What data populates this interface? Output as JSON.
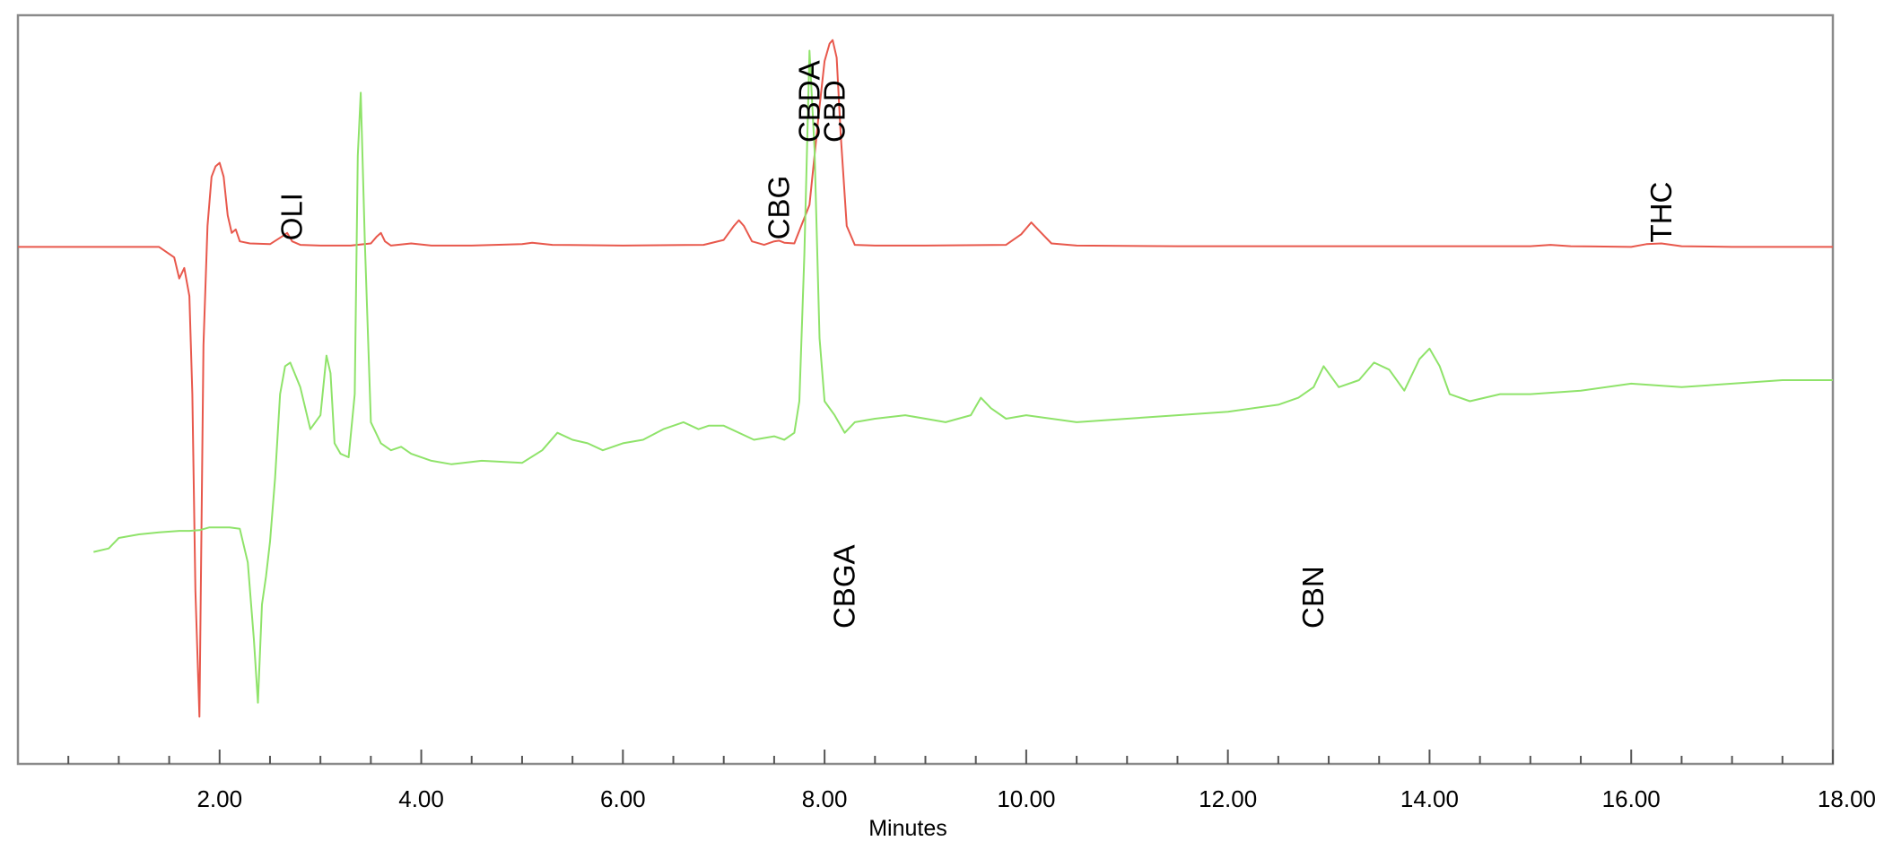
{
  "chart_data": {
    "type": "line",
    "xlabel": "Minutes",
    "ylabel": "",
    "xlim": [
      0,
      18
    ],
    "ylim": [
      0,
      100
    ],
    "grid": false,
    "y_axis_shown": false,
    "x_ticks": [
      {
        "value": 2,
        "label": "2.00"
      },
      {
        "value": 4,
        "label": "4.00"
      },
      {
        "value": 6,
        "label": "6.00"
      },
      {
        "value": 8,
        "label": "8.00"
      },
      {
        "value": 10,
        "label": "10.00"
      },
      {
        "value": 12,
        "label": "12.00"
      },
      {
        "value": 14,
        "label": "14.00"
      },
      {
        "value": 16,
        "label": "16.00"
      },
      {
        "value": 18,
        "label": "18.00"
      }
    ],
    "minor_tick_step": 0.5,
    "series": [
      {
        "color": "#e8584c",
        "x": [
          0.0,
          1.4,
          1.55,
          1.6,
          1.65,
          1.7,
          1.73,
          1.76,
          1.8,
          1.84,
          1.88,
          1.92,
          1.96,
          2.0,
          2.04,
          2.08,
          2.12,
          2.16,
          2.2,
          2.3,
          2.5,
          2.62,
          2.67,
          2.72,
          2.8,
          3.0,
          3.3,
          3.5,
          3.56,
          3.6,
          3.64,
          3.7,
          3.9,
          4.1,
          4.5,
          5.0,
          5.1,
          5.3,
          6.0,
          6.8,
          7.0,
          7.1,
          7.15,
          7.2,
          7.28,
          7.4,
          7.5,
          7.55,
          7.6,
          7.7,
          7.85,
          7.95,
          8.0,
          8.05,
          8.08,
          8.12,
          8.16,
          8.22,
          8.3,
          8.5,
          9.0,
          9.8,
          9.95,
          10.05,
          10.15,
          10.25,
          10.5,
          11.5,
          13.0,
          15.0,
          15.2,
          15.4,
          16.0,
          16.15,
          16.3,
          16.5,
          17.0,
          18.0
        ],
        "y": [
          69.0,
          69.0,
          67.5,
          64.5,
          66.0,
          62.0,
          48.0,
          20.0,
          2.0,
          55.0,
          72.0,
          79.0,
          80.5,
          81.0,
          79.0,
          73.5,
          71.0,
          71.5,
          69.8,
          69.5,
          69.4,
          70.5,
          71.0,
          69.8,
          69.3,
          69.2,
          69.2,
          69.5,
          70.5,
          71.0,
          69.8,
          69.2,
          69.5,
          69.2,
          69.2,
          69.4,
          69.6,
          69.3,
          69.2,
          69.3,
          70.0,
          72.0,
          72.8,
          72.0,
          69.8,
          69.3,
          69.8,
          69.9,
          69.6,
          69.5,
          75.0,
          89.0,
          95.5,
          98.0,
          98.5,
          96.0,
          85.0,
          72.0,
          69.3,
          69.2,
          69.2,
          69.3,
          70.8,
          72.5,
          71.0,
          69.5,
          69.2,
          69.1,
          69.1,
          69.1,
          69.3,
          69.1,
          69.0,
          69.4,
          69.5,
          69.1,
          69.0,
          69.0
        ]
      },
      {
        "color": "#8fe36a",
        "x": [
          0.75,
          0.9,
          1.0,
          1.2,
          1.4,
          1.6,
          1.7,
          1.8,
          1.9,
          2.0,
          2.1,
          2.2,
          2.28,
          2.34,
          2.38,
          2.42,
          2.46,
          2.5,
          2.55,
          2.6,
          2.65,
          2.7,
          2.8,
          2.9,
          3.0,
          3.06,
          3.1,
          3.14,
          3.2,
          3.28,
          3.34,
          3.37,
          3.4,
          3.44,
          3.5,
          3.6,
          3.7,
          3.8,
          3.9,
          4.1,
          4.3,
          4.6,
          5.0,
          5.2,
          5.35,
          5.5,
          5.65,
          5.8,
          6.0,
          6.2,
          6.4,
          6.6,
          6.75,
          6.85,
          7.0,
          7.3,
          7.5,
          7.6,
          7.7,
          7.75,
          7.8,
          7.85,
          7.9,
          7.95,
          8.0,
          8.1,
          8.2,
          8.3,
          8.5,
          8.8,
          9.2,
          9.45,
          9.55,
          9.65,
          9.8,
          10.0,
          10.5,
          11.0,
          11.5,
          12.0,
          12.5,
          12.7,
          12.85,
          12.95,
          13.1,
          13.3,
          13.45,
          13.6,
          13.75,
          13.9,
          14.0,
          14.1,
          14.2,
          14.4,
          14.7,
          15.0,
          15.5,
          16.0,
          16.5,
          17.0,
          17.5,
          18.0
        ],
        "y": [
          25.5,
          26.0,
          27.5,
          28.0,
          28.3,
          28.5,
          28.5,
          28.6,
          29.0,
          29.0,
          29.0,
          28.8,
          24.0,
          13.0,
          4.0,
          18.0,
          22.0,
          27.0,
          36.0,
          48.0,
          52.0,
          52.5,
          49.0,
          43.0,
          45.0,
          53.5,
          51.0,
          41.0,
          39.5,
          39.0,
          48.0,
          82.0,
          91.0,
          70.0,
          44.0,
          41.0,
          40.0,
          40.5,
          39.5,
          38.5,
          38.0,
          38.5,
          38.2,
          40.0,
          42.5,
          41.5,
          41.0,
          40.0,
          41.0,
          41.5,
          43.0,
          44.0,
          43.0,
          43.5,
          43.5,
          41.5,
          42.0,
          41.5,
          42.5,
          47.0,
          68.0,
          97.0,
          83.0,
          56.0,
          47.0,
          45.0,
          42.5,
          44.0,
          44.5,
          45.0,
          44.0,
          45.0,
          47.5,
          46.0,
          44.5,
          45.0,
          44.0,
          44.5,
          45.0,
          45.5,
          46.5,
          47.5,
          49.0,
          52.0,
          49.0,
          50.0,
          52.5,
          51.5,
          48.5,
          53.0,
          54.5,
          52.0,
          48.0,
          47.0,
          48.0,
          48.0,
          48.5,
          49.5,
          49.0,
          49.5,
          50.0,
          50.0
        ]
      }
    ],
    "annotations": [
      {
        "text": "OLI",
        "x": 2.72,
        "series": 0
      },
      {
        "text": "CBG",
        "x": 7.55,
        "series": 0
      },
      {
        "text": "CBDA",
        "x": 7.85,
        "series": 0
      },
      {
        "text": "CBD",
        "x": 8.1,
        "series": 0
      },
      {
        "text": "THC",
        "x": 16.3,
        "series": 0
      },
      {
        "text": "CBGA",
        "x": 8.2,
        "series": 1
      },
      {
        "text": "CBN",
        "x": 12.85,
        "series": 1
      }
    ]
  }
}
